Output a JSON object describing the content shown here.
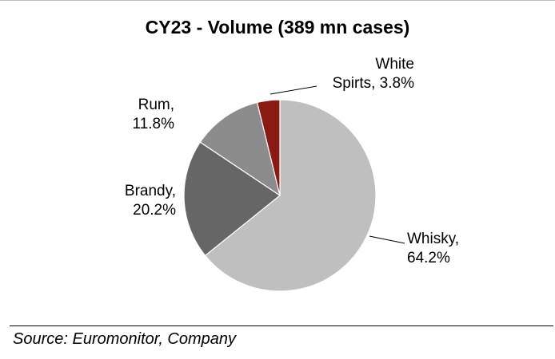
{
  "chart_data": {
    "type": "pie",
    "title": "CY23 - Volume (389 mn cases)",
    "slices": [
      {
        "label_lines": [
          "Whisky,",
          "64.2%"
        ],
        "category": "Whisky",
        "value": 64.2,
        "color": "#bfbfbf"
      },
      {
        "label_lines": [
          "Brandy,",
          "20.2%"
        ],
        "category": "Brandy",
        "value": 20.2,
        "color": "#666666"
      },
      {
        "label_lines": [
          "Rum,",
          "11.8%"
        ],
        "category": "Rum",
        "value": 11.8,
        "color": "#8c8c8c"
      },
      {
        "label_lines": [
          "White",
          "Spirts, 3.8%"
        ],
        "category": "White Spirts",
        "value": 3.8,
        "color": "#8b1a12"
      }
    ],
    "start_angle_deg": 0,
    "direction": "clockwise",
    "slice_border_color": "#ffffff"
  },
  "source": "Source: Euromonitor, Company"
}
